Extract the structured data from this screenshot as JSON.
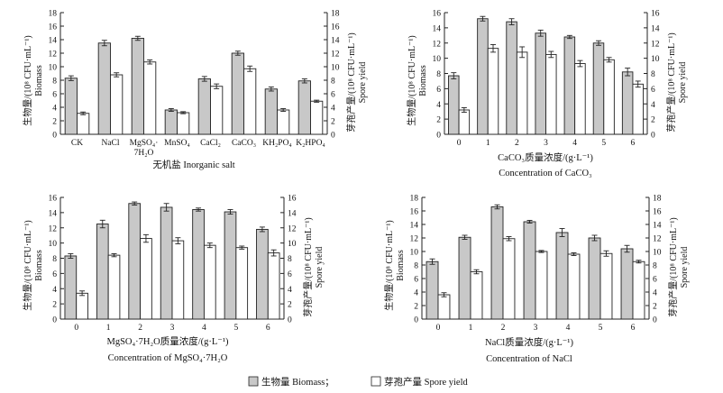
{
  "colors": {
    "biomass": "#c8c8c8",
    "spore": "#ffffff",
    "stroke": "#222222"
  },
  "legend": {
    "biomass": "生物量 Biomass；",
    "spore": "芽孢产量 Spore yield"
  },
  "chart_data": [
    {
      "type": "bar",
      "id": "a",
      "categories": [
        "CK",
        "NaCl",
        "MgSO₄·7H₂O",
        "MnSO₄",
        "CaCl₂",
        "CaCO₃",
        "KH₂PO₄",
        "K₂HPO₄"
      ],
      "category_labels": [
        [
          "CK"
        ],
        [
          "NaCl"
        ],
        [
          "MgSO₄·",
          "7H₂O"
        ],
        [
          "MnSO₄"
        ],
        [
          "CaCl₂"
        ],
        [
          "CaCO₃"
        ],
        [
          "KH₂PO₄"
        ],
        [
          "K₂HPO₄"
        ]
      ],
      "series": [
        {
          "name": "Biomass",
          "values": [
            8.3,
            13.5,
            14.2,
            3.6,
            8.2,
            12.0,
            6.7,
            7.9
          ],
          "errors": [
            0.35,
            0.4,
            0.3,
            0.2,
            0.35,
            0.3,
            0.3,
            0.3
          ]
        },
        {
          "name": "Spore yield",
          "values": [
            3.1,
            8.8,
            10.7,
            3.2,
            7.1,
            9.7,
            3.6,
            4.9
          ],
          "errors": [
            0.2,
            0.3,
            0.3,
            0.15,
            0.35,
            0.4,
            0.2,
            0.15
          ]
        }
      ],
      "ylim": [
        0,
        18
      ],
      "yticks": [
        0,
        2,
        4,
        6,
        8,
        10,
        12,
        14,
        16,
        18
      ],
      "ylabel_left": "生物量/(10⁸ CFU·mL⁻¹) Biomass",
      "ylabel_left_cn": "生物量/(10⁸ CFU·mL⁻¹)",
      "ylabel_left_en": "Biomass",
      "ylabel_right": "芽孢产量/(10⁸ CFU·mL⁻¹) Spore yield",
      "ylabel_right_cn": "芽孢产量/(10⁸ CFU·mL⁻¹)",
      "ylabel_right_en": "Spore yield",
      "xlabel": "无机盐 Inorganic salt",
      "xlabel_en": ""
    },
    {
      "type": "bar",
      "id": "b",
      "categories": [
        "0",
        "1",
        "2",
        "3",
        "4",
        "5",
        "6"
      ],
      "category_labels": [
        [
          "0"
        ],
        [
          "1"
        ],
        [
          "2"
        ],
        [
          "3"
        ],
        [
          "4"
        ],
        [
          "5"
        ],
        [
          "6"
        ]
      ],
      "series": [
        {
          "name": "Biomass",
          "values": [
            7.7,
            15.2,
            14.8,
            13.3,
            12.8,
            12.0,
            8.2
          ],
          "errors": [
            0.4,
            0.3,
            0.4,
            0.4,
            0.2,
            0.3,
            0.5
          ]
        },
        {
          "name": "Spore yield",
          "values": [
            3.2,
            11.3,
            10.8,
            10.5,
            9.3,
            9.8,
            6.6
          ],
          "errors": [
            0.3,
            0.5,
            0.7,
            0.4,
            0.4,
            0.3,
            0.4
          ]
        }
      ],
      "ylim": [
        0,
        16
      ],
      "yticks": [
        0,
        2,
        4,
        6,
        8,
        10,
        12,
        14,
        16
      ],
      "ylabel_left_cn": "生物量/(10⁸ CFU·mL⁻¹)",
      "ylabel_left_en": "Biomass",
      "ylabel_right_cn": "芽孢产量/(10⁸ CFU·mL⁻¹)",
      "ylabel_right_en": "Spore yield",
      "xlabel": "CaCO₃质量浓度/(g·L⁻¹)",
      "xlabel_en": "Concentration of CaCO₃"
    },
    {
      "type": "bar",
      "id": "c",
      "categories": [
        "0",
        "1",
        "2",
        "3",
        "4",
        "5",
        "6"
      ],
      "category_labels": [
        [
          "0"
        ],
        [
          "1"
        ],
        [
          "2"
        ],
        [
          "3"
        ],
        [
          "4"
        ],
        [
          "5"
        ],
        [
          "6"
        ]
      ],
      "series": [
        {
          "name": "Biomass",
          "values": [
            8.3,
            12.5,
            15.2,
            14.7,
            14.4,
            14.1,
            11.8
          ],
          "errors": [
            0.3,
            0.5,
            0.2,
            0.5,
            0.2,
            0.3,
            0.3
          ]
        },
        {
          "name": "Spore yield",
          "values": [
            3.4,
            8.4,
            10.6,
            10.3,
            9.7,
            9.4,
            8.7
          ],
          "errors": [
            0.3,
            0.2,
            0.5,
            0.4,
            0.3,
            0.2,
            0.4
          ]
        }
      ],
      "ylim": [
        0,
        16
      ],
      "yticks": [
        0,
        2,
        4,
        6,
        8,
        10,
        12,
        14,
        16
      ],
      "ylabel_left_cn": "生物量/(10⁸ CFU·mL⁻¹)",
      "ylabel_left_en": "Biomass",
      "ylabel_right_cn": "芽孢产量/(10⁸ CFU·mL⁻¹)",
      "ylabel_right_en": "Spore yield",
      "xlabel": "MgSO₄·7H₂O质量浓度/(g·L⁻¹)",
      "xlabel_en": "Concentration of MgSO₄·7H₂O"
    },
    {
      "type": "bar",
      "id": "d",
      "categories": [
        "0",
        "1",
        "2",
        "3",
        "4",
        "5",
        "6"
      ],
      "category_labels": [
        [
          "0"
        ],
        [
          "1"
        ],
        [
          "2"
        ],
        [
          "3"
        ],
        [
          "4"
        ],
        [
          "5"
        ],
        [
          "6"
        ]
      ],
      "series": [
        {
          "name": "Biomass",
          "values": [
            8.5,
            12.1,
            16.6,
            14.4,
            12.8,
            12.0,
            10.4
          ],
          "errors": [
            0.4,
            0.3,
            0.3,
            0.2,
            0.6,
            0.4,
            0.5
          ]
        },
        {
          "name": "Spore yield",
          "values": [
            3.6,
            7.0,
            11.9,
            10.0,
            9.6,
            9.7,
            8.5
          ],
          "errors": [
            0.3,
            0.3,
            0.3,
            0.15,
            0.2,
            0.4,
            0.2
          ]
        }
      ],
      "ylim": [
        0,
        18
      ],
      "yticks": [
        0,
        2,
        4,
        6,
        8,
        10,
        12,
        14,
        16,
        18
      ],
      "ylabel_left_cn": "生物量/(10⁸ CFU·mL⁻¹)",
      "ylabel_left_en": "Biomass",
      "ylabel_right_cn": "芽孢产量/(10⁸ CFU·mL⁻¹)",
      "ylabel_right_en": "Spore yield",
      "xlabel": "NaCl质量浓度/(g·L⁻¹)",
      "xlabel_en": "Concentration of NaCl"
    }
  ]
}
